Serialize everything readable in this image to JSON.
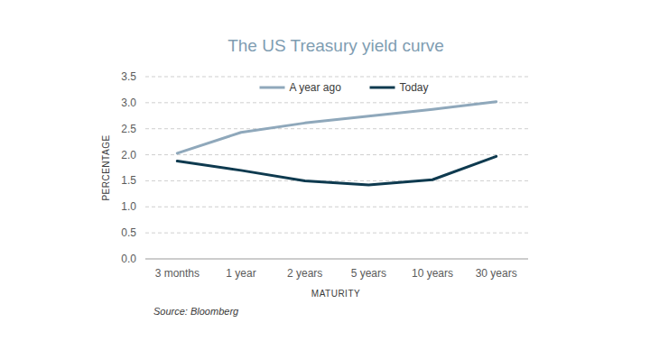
{
  "chart_data": {
    "type": "line",
    "title": "The US Treasury yield curve",
    "x_label": "MATURITY",
    "y_label": "PERCENTAGE",
    "source": "Source: Bloomberg",
    "categories": [
      "3 months",
      "1 year",
      "2 years",
      "5 years",
      "10 years",
      "30 years"
    ],
    "series": [
      {
        "name": "A year ago",
        "color": "#8fa8bb",
        "values": [
          2.03,
          2.43,
          2.61,
          2.74,
          2.87,
          3.02
        ]
      },
      {
        "name": "Today",
        "color": "#0e3a4f",
        "values": [
          1.88,
          1.7,
          1.5,
          1.42,
          1.52,
          1.97
        ]
      }
    ],
    "ylim": [
      0,
      3.5
    ],
    "yticks": [
      {
        "value": 0,
        "label": "0.0"
      },
      0.5,
      {
        "value": 1,
        "label": "1.0"
      },
      1.5,
      {
        "value": 2,
        "label": "2.0"
      },
      2.5,
      {
        "value": 3,
        "label": "3.0"
      },
      3.5
    ],
    "grid": true,
    "legend": "top"
  }
}
